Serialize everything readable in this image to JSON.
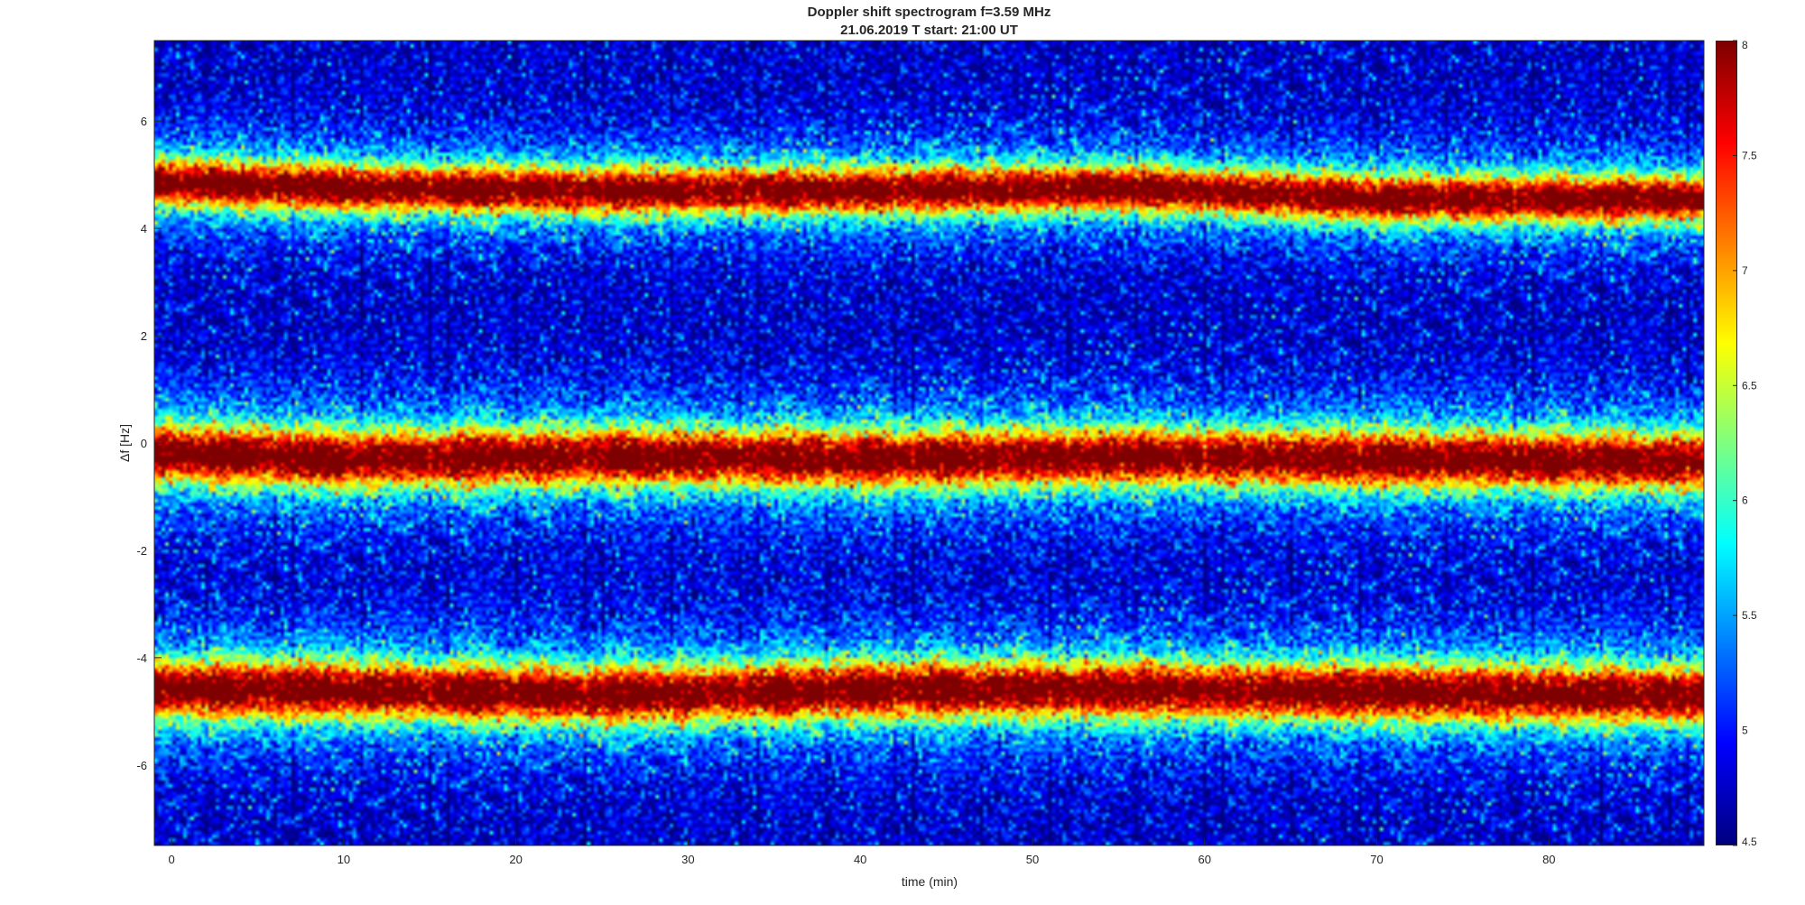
{
  "chart_data": {
    "type": "heatmap",
    "title": "Doppler shift spectrogram f=3.59 MHz",
    "subtitle": "21.06.2019   T start: 21:00 UT",
    "xlabel": "time (min)",
    "ylabel": "Δf [Hz]",
    "xlim": [
      -1,
      89
    ],
    "ylim": [
      -7.5,
      7.5
    ],
    "x_ticks": [
      0,
      10,
      20,
      30,
      40,
      50,
      60,
      70,
      80
    ],
    "y_ticks": [
      6,
      4,
      2,
      0,
      -2,
      -4,
      -6
    ],
    "colorbar": {
      "colormap": "jet",
      "range": [
        4.5,
        8
      ],
      "ticks": [
        8,
        7.5,
        7,
        6.5,
        6,
        5.5,
        5,
        4.5
      ]
    },
    "bands": [
      {
        "name": "upper",
        "center_hz": [
          [
            0,
            4.85
          ],
          [
            10,
            4.75
          ],
          [
            25,
            4.7
          ],
          [
            40,
            4.7
          ],
          [
            55,
            4.75
          ],
          [
            70,
            4.55
          ],
          [
            89,
            4.55
          ]
        ],
        "width_hz": 0.45
      },
      {
        "name": "middle",
        "center_hz": [
          [
            0,
            -0.2
          ],
          [
            10,
            -0.3
          ],
          [
            25,
            -0.25
          ],
          [
            40,
            -0.3
          ],
          [
            55,
            -0.25
          ],
          [
            70,
            -0.3
          ],
          [
            89,
            -0.35
          ]
        ],
        "width_hz": 0.55
      },
      {
        "name": "lower",
        "center_hz": [
          [
            0,
            -4.6
          ],
          [
            10,
            -4.6
          ],
          [
            25,
            -4.7
          ],
          [
            40,
            -4.6
          ],
          [
            55,
            -4.6
          ],
          [
            70,
            -4.65
          ],
          [
            89,
            -4.7
          ]
        ],
        "width_hz": 0.55
      }
    ]
  }
}
